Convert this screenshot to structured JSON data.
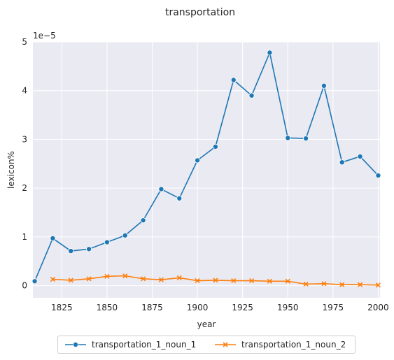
{
  "chart_data": {
    "type": "line",
    "title": "transportation",
    "xlabel": "year",
    "ylabel": "lexicon%",
    "y_scale_label": "1e−5",
    "xlim": [
      1809,
      2001
    ],
    "ylim": [
      -0.25,
      5.0
    ],
    "y_multiplier": 1e-05,
    "x_ticks": [
      1825,
      1850,
      1875,
      1900,
      1925,
      1950,
      1975,
      2000
    ],
    "y_ticks": [
      0,
      1,
      2,
      3,
      4,
      5
    ],
    "grid": true,
    "legend_placement": "bottom-center",
    "x": [
      1810,
      1820,
      1830,
      1840,
      1850,
      1860,
      1870,
      1880,
      1890,
      1900,
      1910,
      1920,
      1930,
      1940,
      1950,
      1960,
      1970,
      1980,
      1990,
      2000
    ],
    "series": [
      {
        "name": "transportation_1_noun_1",
        "color": "#1f77b4",
        "marker": "circle",
        "values": [
          0.09,
          0.97,
          0.71,
          0.75,
          0.89,
          1.03,
          1.34,
          1.98,
          1.79,
          2.57,
          2.85,
          4.22,
          3.9,
          4.78,
          3.03,
          3.02,
          4.1,
          2.53,
          2.65,
          2.26
        ]
      },
      {
        "name": "transportation_1_noun_2",
        "color": "#ff7f0e",
        "marker": "x",
        "values": [
          null,
          0.13,
          0.11,
          0.14,
          0.19,
          0.2,
          0.14,
          0.12,
          0.16,
          0.1,
          0.11,
          0.1,
          0.1,
          0.09,
          0.09,
          0.03,
          0.04,
          0.02,
          0.02,
          0.01
        ]
      }
    ]
  }
}
